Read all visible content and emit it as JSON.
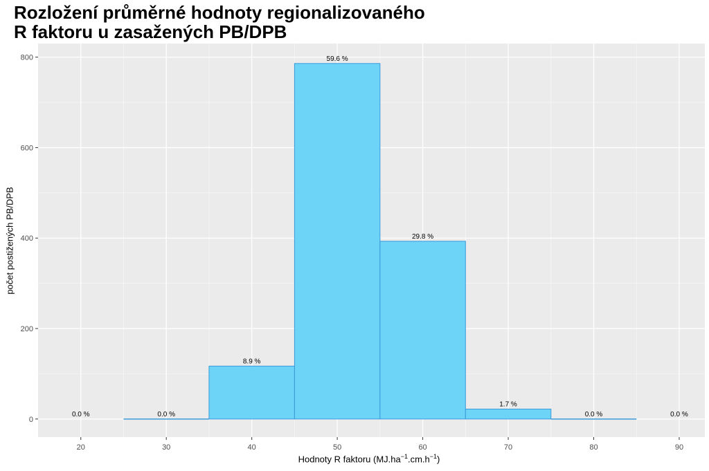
{
  "chart_data": {
    "type": "bar",
    "title": "Rozložení průměrné hodnoty regionalizovaného R faktoru u zasažených PB/DPB",
    "title_lines": [
      "Rozložení průměrné hodnoty regionalizovaného",
      "R faktoru u zasažených PB/DPB"
    ],
    "xlabel_main": "Hodnoty R faktoru (MJ.ha",
    "xlabel_sup1": "−1",
    "xlabel_mid": ".cm.h",
    "xlabel_sup2": "−1",
    "xlabel_end": ")",
    "ylabel": "počet postižených PB/DPB",
    "xlim": [
      15,
      93
    ],
    "ylim": [
      -40,
      830
    ],
    "x_ticks": [
      20,
      30,
      40,
      50,
      60,
      70,
      80,
      90
    ],
    "y_ticks": [
      0,
      200,
      400,
      600,
      800
    ],
    "bin_width": 10,
    "bins": [
      {
        "center": 20,
        "value": 0,
        "label": "0.0 %"
      },
      {
        "center": 30,
        "value": 0,
        "label": "0.0 %"
      },
      {
        "center": 40,
        "value": 117,
        "label": "8.9 %"
      },
      {
        "center": 50,
        "value": 786,
        "label": "59.6 %"
      },
      {
        "center": 60,
        "value": 393,
        "label": "29.8 %"
      },
      {
        "center": 70,
        "value": 22,
        "label": "1.7 %"
      },
      {
        "center": 80,
        "value": 0,
        "label": "0.0 %"
      },
      {
        "center": 90,
        "value": 0,
        "label": "0.0 %"
      }
    ],
    "bar_fill": "#6dd4f8",
    "bar_stroke": "#3a9ad9",
    "panel_background": "#ebebeb",
    "grid": true
  }
}
